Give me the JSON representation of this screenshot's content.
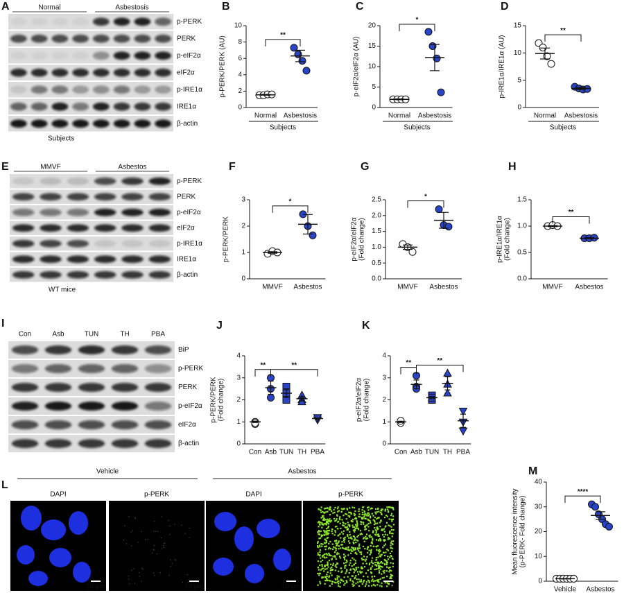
{
  "blots": [
    {
      "panel": "A",
      "groups": [
        "Normal",
        "Asbestosis"
      ],
      "rows": [
        "p-PERK",
        "PERK",
        "p-eIF2α",
        "eIF2α",
        "p-IRE1α",
        "IRE1α",
        "β-actin"
      ],
      "footer": "Subjects"
    },
    {
      "panel": "E",
      "groups": [
        "MMVF",
        "Asbestos"
      ],
      "rows": [
        "p-PERK",
        "PERK",
        "p-eIF2α",
        "eIF2α",
        "p-IRE1α",
        "IRE1α",
        "β-actin"
      ],
      "footer": "WT mice"
    },
    {
      "panel": "I",
      "lanes": [
        "Con",
        "Asb",
        "TUN",
        "TH",
        "PBA"
      ],
      "rows": [
        "BiP",
        "p-PERK",
        "PERK",
        "p-eIF2α",
        "eIF2α",
        "β-actin"
      ]
    }
  ],
  "microscopy": {
    "panel": "L",
    "groups": [
      {
        "name": "Vehicle",
        "channels": [
          "DAPI",
          "p-PERK"
        ]
      },
      {
        "name": "Asbestos",
        "channels": [
          "DAPI",
          "p-PERK"
        ]
      }
    ],
    "scale_bar": "10 μm"
  },
  "chart_data": [
    {
      "type": "dot",
      "panel": "B",
      "ylabel": [
        "p-PERK/PERK (AU)"
      ],
      "categories": [
        "Normal",
        "Asbestosis"
      ],
      "xgroup": "Subjects",
      "values": [
        [
          1.5,
          1.5,
          1.6,
          1.6
        ],
        [
          7.3,
          6.5,
          5.7,
          4.5
        ]
      ],
      "means": [
        1.55,
        6.3
      ],
      "sems": [
        0.05,
        0.7
      ],
      "markers": [
        "circle",
        "circle"
      ],
      "colors": [
        "#ffffff",
        "#2a44c8"
      ],
      "ylim": [
        0,
        10
      ],
      "yticks": [
        0,
        2,
        4,
        6,
        8,
        10
      ],
      "significance": [
        {
          "pair": [
            0,
            1
          ],
          "label": "**"
        }
      ]
    },
    {
      "type": "dot",
      "panel": "C",
      "ylabel": [
        "p-eIF2α/eIF2α (AU)"
      ],
      "categories": [
        "Normal",
        "Asbestosis"
      ],
      "xgroup": "Subjects",
      "values": [
        [
          2,
          2,
          2,
          2
        ],
        [
          18.5,
          15,
          12,
          3.7
        ]
      ],
      "means": [
        2,
        12.2
      ],
      "sems": [
        0.1,
        3.2
      ],
      "markers": [
        "circle",
        "circle"
      ],
      "colors": [
        "#ffffff",
        "#2a44c8"
      ],
      "ylim": [
        0,
        20
      ],
      "yticks": [
        0,
        5,
        10,
        15,
        20
      ],
      "significance": [
        {
          "pair": [
            0,
            1
          ],
          "label": "*"
        }
      ]
    },
    {
      "type": "dot",
      "panel": "D",
      "ylabel": [
        "p-IRE1α/IRE1α (AU)"
      ],
      "categories": [
        "Normal",
        "Asbestosis"
      ],
      "xgroup": "Subjects",
      "values": [
        [
          11.8,
          11,
          9.4,
          8
        ],
        [
          3.8,
          3.5,
          3.3,
          3.4
        ]
      ],
      "means": [
        9.9,
        3.5
      ],
      "sems": [
        1,
        0.2
      ],
      "markers": [
        "circle",
        "circle"
      ],
      "colors": [
        "#ffffff",
        "#2a44c8"
      ],
      "ylim": [
        0,
        15
      ],
      "yticks": [
        0,
        5,
        10,
        15
      ],
      "significance": [
        {
          "pair": [
            0,
            1
          ],
          "label": "**"
        }
      ]
    },
    {
      "type": "dot",
      "panel": "F",
      "ylabel": [
        "p-PERK/PERK"
      ],
      "categories": [
        "MMVF",
        "Asbestos"
      ],
      "values": [
        [
          0.95,
          1.05,
          1.0
        ],
        [
          2.45,
          2.0,
          1.65
        ]
      ],
      "means": [
        1.0,
        2.07
      ],
      "sems": [
        0.03,
        0.37
      ],
      "markers": [
        "circle",
        "circle"
      ],
      "colors": [
        "#ffffff",
        "#2a44c8"
      ],
      "ylim": [
        0,
        3
      ],
      "yticks": [
        0,
        1,
        2,
        3
      ],
      "significance": [
        {
          "pair": [
            0,
            1
          ],
          "label": "*"
        }
      ]
    },
    {
      "type": "dot",
      "panel": "G",
      "ylabel": [
        "p-eIF2α/eIF2α",
        "(Fold change)"
      ],
      "categories": [
        "MMVF",
        "Asbestos"
      ],
      "values": [
        [
          1.1,
          1.0,
          0.85
        ],
        [
          2.2,
          1.7,
          1.65
        ]
      ],
      "means": [
        1.0,
        1.85
      ],
      "sems": [
        0.07,
        0.25
      ],
      "markers": [
        "circle",
        "circle"
      ],
      "colors": [
        "#ffffff",
        "#2a44c8"
      ],
      "ylim": [
        0,
        2.5
      ],
      "yticks": [
        {
          "value": 0,
          "label": "0.0"
        },
        0.5,
        {
          "value": 1,
          "label": "1.0"
        },
        1.5,
        {
          "value": 2,
          "label": "2.0"
        },
        2.5
      ],
      "significance": [
        {
          "pair": [
            0,
            1
          ],
          "label": "*"
        }
      ]
    },
    {
      "type": "dot",
      "panel": "H",
      "ylabel": [
        "p-IRE1α/IRE1α",
        "(Fold change)"
      ],
      "categories": [
        "MMVF",
        "Asbestos"
      ],
      "values": [
        [
          1.0,
          1.02,
          1.0
        ],
        [
          0.77,
          0.77,
          0.78
        ]
      ],
      "means": [
        1.0,
        0.77
      ],
      "sems": [
        0.01,
        0.01
      ],
      "markers": [
        "circle",
        "circle"
      ],
      "colors": [
        "#ffffff",
        "#2a44c8"
      ],
      "ylim": [
        0,
        1.5
      ],
      "yticks": [
        {
          "value": 0,
          "label": "0.0"
        },
        0.5,
        {
          "value": 1,
          "label": "1.0"
        },
        1.5
      ],
      "significance": [
        {
          "pair": [
            0,
            1
          ],
          "label": "**"
        }
      ]
    },
    {
      "type": "dot",
      "panel": "J",
      "ylabel": [
        "p-PERK/PERK",
        "(Fold change)"
      ],
      "categories": [
        "Con",
        "Asb",
        "TUN",
        "TH",
        "PBA"
      ],
      "values": [
        [
          1.0,
          0.9,
          0.95
        ],
        [
          3.0,
          2.5,
          2.1
        ],
        [
          2.6,
          2.3,
          2.0
        ],
        [
          2.2,
          2.0,
          1.9
        ],
        [
          1.2,
          1.1,
          1.2
        ]
      ],
      "means": [
        1.0,
        2.55,
        2.3,
        2.05,
        1.15
      ],
      "sems": [
        0.03,
        0.3,
        0.2,
        0.1,
        0.03
      ],
      "markers": [
        "circle",
        "circle",
        "square",
        "triangle",
        "triangle-down"
      ],
      "colors": [
        "#ffffff",
        "#2a44c8",
        "#2a44c8",
        "#2a44c8",
        "#2a44c8"
      ],
      "ylim": [
        0,
        4
      ],
      "yticks": [
        0,
        1,
        2,
        3,
        4
      ],
      "significance": [
        {
          "pair": [
            0,
            1
          ],
          "label": "**"
        },
        {
          "pair": [
            1,
            4
          ],
          "label": "**"
        }
      ]
    },
    {
      "type": "dot",
      "panel": "K",
      "ylabel": [
        "p-eIF2α/eIF2α",
        "(Fold change)"
      ],
      "categories": [
        "Con",
        "Asb",
        "TUN",
        "TH",
        "PBA"
      ],
      "values": [
        [
          1.0,
          0.95,
          1.05
        ],
        [
          3.1,
          2.6,
          2.5
        ],
        [
          2.2,
          2.0,
          2.1
        ],
        [
          3.2,
          2.7,
          2.3
        ],
        [
          1.5,
          1.0,
          0.6
        ]
      ],
      "means": [
        1.0,
        2.7,
        2.1,
        2.75,
        1.05
      ],
      "sems": [
        0.03,
        0.2,
        0.05,
        0.3,
        0.3
      ],
      "markers": [
        "circle",
        "circle",
        "square",
        "triangle",
        "triangle-down"
      ],
      "colors": [
        "#ffffff",
        "#2a44c8",
        "#2a44c8",
        "#2a44c8",
        "#2a44c8"
      ],
      "ylim": [
        0,
        4
      ],
      "yticks": [
        0,
        1,
        2,
        3,
        4
      ],
      "significance": [
        {
          "pair": [
            0,
            1
          ],
          "label": "**"
        },
        {
          "pair": [
            1,
            4
          ],
          "label": "**"
        }
      ]
    },
    {
      "type": "dot",
      "panel": "M",
      "ylabel": [
        "Mean fluorescence intensity",
        "(p-PERK- Fold change)"
      ],
      "categories": [
        "Vehicle",
        "Asbestos"
      ],
      "values": [
        [
          1,
          1,
          1,
          1,
          1,
          1
        ],
        [
          31,
          30,
          27,
          25,
          23,
          22
        ]
      ],
      "means": [
        1,
        26.5
      ],
      "sems": [
        0.1,
        1.5
      ],
      "markers": [
        "circle",
        "circle"
      ],
      "colors": [
        "#ffffff",
        "#2a44c8"
      ],
      "ylim": [
        0,
        40
      ],
      "yticks": [
        0,
        10,
        20,
        30,
        40
      ],
      "significance": [
        {
          "pair": [
            0,
            1
          ],
          "label": "****"
        }
      ]
    }
  ]
}
